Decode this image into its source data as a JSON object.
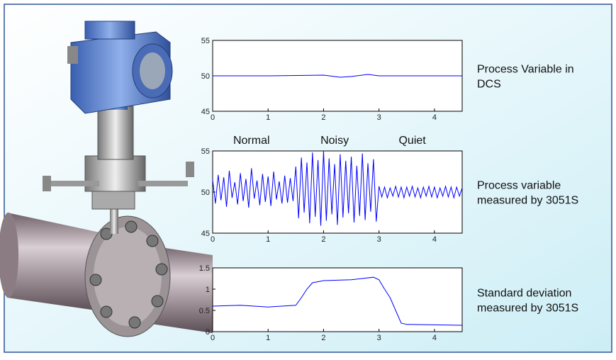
{
  "chart_data": [
    {
      "type": "line",
      "label_lines": [
        "Process Variable in",
        "DCS"
      ],
      "color": "#0000ff",
      "x": [
        0,
        1,
        2,
        2.3,
        2.5,
        2.8,
        3,
        3.5,
        4.5
      ],
      "values": [
        50,
        50,
        50.1,
        49.8,
        49.9,
        50.2,
        50,
        50,
        50
      ],
      "xlim": [
        0,
        4.5
      ],
      "ylim": [
        45,
        55
      ],
      "xticks": [
        0,
        1,
        2,
        3,
        4
      ],
      "yticks": [
        45,
        50,
        55
      ]
    },
    {
      "type": "line",
      "label_lines": [
        "Process variable",
        "measured by 3051S"
      ],
      "color": "#0000ff",
      "annotations": [
        {
          "text": "Normal",
          "x": 0.7
        },
        {
          "text": "Noisy",
          "x": 2.2
        },
        {
          "text": "Quiet",
          "x": 3.6
        }
      ],
      "x": [
        0,
        0.05,
        0.1,
        0.15,
        0.2,
        0.25,
        0.3,
        0.35,
        0.4,
        0.45,
        0.5,
        0.55,
        0.6,
        0.65,
        0.7,
        0.75,
        0.8,
        0.85,
        0.9,
        0.95,
        1,
        1.05,
        1.1,
        1.15,
        1.2,
        1.25,
        1.3,
        1.35,
        1.4,
        1.45,
        1.5,
        1.55,
        1.6,
        1.65,
        1.7,
        1.75,
        1.8,
        1.85,
        1.9,
        1.95,
        2,
        2.05,
        2.1,
        2.15,
        2.2,
        2.25,
        2.3,
        2.35,
        2.4,
        2.45,
        2.5,
        2.55,
        2.6,
        2.65,
        2.7,
        2.75,
        2.8,
        2.85,
        2.9,
        2.95,
        3,
        3.05,
        3.1,
        3.15,
        3.2,
        3.25,
        3.3,
        3.35,
        3.4,
        3.45,
        3.5,
        3.55,
        3.6,
        3.65,
        3.7,
        3.75,
        3.8,
        3.85,
        3.9,
        3.95,
        4,
        4.05,
        4.1,
        4.15,
        4.2,
        4.25,
        4.3,
        4.35,
        4.4,
        4.45,
        4.5
      ],
      "values": [
        51.5,
        48.6,
        52.1,
        49.0,
        51.8,
        48.2,
        52.6,
        49.3,
        51.2,
        48.5,
        52.3,
        48.9,
        51.6,
        48.1,
        52.9,
        49.2,
        51.4,
        48.4,
        52.2,
        48.8,
        51.9,
        48.3,
        52.5,
        49.1,
        51.3,
        48.6,
        52.0,
        48.7,
        51.7,
        48.9,
        53.1,
        46.8,
        54.2,
        47.5,
        53.6,
        46.2,
        54.8,
        47.0,
        53.9,
        45.9,
        55.0,
        46.5,
        54.1,
        47.3,
        53.4,
        46.0,
        54.6,
        46.9,
        53.8,
        47.4,
        54.3,
        46.3,
        53.2,
        47.1,
        54.7,
        46.6,
        53.5,
        47.6,
        54.0,
        46.4,
        50.7,
        49.4,
        50.6,
        49.3,
        50.5,
        49.5,
        50.7,
        49.4,
        50.6,
        49.3,
        50.6,
        49.5,
        50.7,
        49.4,
        50.5,
        49.3,
        50.6,
        49.5,
        50.7,
        49.4,
        50.6,
        49.3,
        50.5,
        49.5,
        50.7,
        49.4,
        50.6,
        49.3,
        50.6,
        49.5,
        50.5
      ],
      "xlim": [
        0,
        4.5
      ],
      "ylim": [
        45,
        55
      ],
      "xticks": [
        0,
        1,
        2,
        3,
        4
      ],
      "yticks": [
        45,
        50,
        55
      ]
    },
    {
      "type": "line",
      "label_lines": [
        "Standard deviation",
        "measured by 3051S"
      ],
      "color": "#0000ff",
      "x": [
        0,
        0.5,
        1,
        1.5,
        1.6,
        1.7,
        1.8,
        2,
        2.5,
        2.9,
        3,
        3.1,
        3.2,
        3.3,
        3.4,
        3.5,
        4,
        4.5
      ],
      "values": [
        0.6,
        0.62,
        0.58,
        0.62,
        0.8,
        1.0,
        1.15,
        1.2,
        1.22,
        1.28,
        1.22,
        1.0,
        0.8,
        0.5,
        0.2,
        0.17,
        0.16,
        0.15
      ],
      "xlim": [
        0,
        4.5
      ],
      "ylim": [
        0,
        1.5
      ],
      "xticks": [
        0,
        1,
        2,
        3,
        4
      ],
      "yticks": [
        0,
        0.5,
        1,
        1.5
      ]
    }
  ]
}
